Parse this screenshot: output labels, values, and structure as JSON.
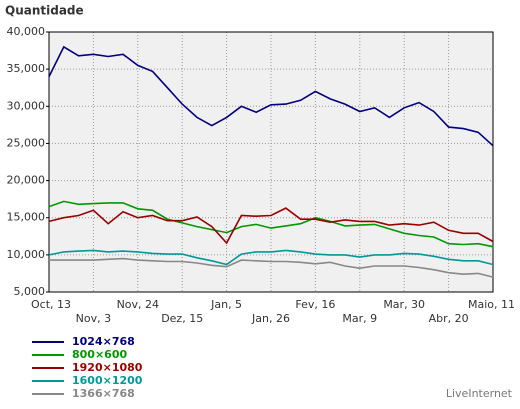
{
  "chart_data": {
    "type": "line",
    "title": "Quantidade",
    "source": "LiveInternet",
    "categories": [
      "Oct, 13",
      null,
      null,
      "Nov, 3",
      null,
      null,
      "Nov, 24",
      null,
      null,
      "Dez, 15",
      null,
      null,
      "Jan, 5",
      null,
      null,
      "Jan, 26",
      null,
      null,
      "Fev, 16",
      null,
      null,
      "Mar, 9",
      null,
      null,
      "Mar, 30",
      null,
      null,
      "Abr, 20",
      null,
      null,
      "Maio, 11"
    ],
    "series": [
      {
        "name": "1024×768",
        "color": "#000080",
        "values": [
          34000,
          38000,
          36800,
          37000,
          36700,
          37000,
          35500,
          34700,
          32500,
          30300,
          28500,
          27400,
          28500,
          30000,
          29200,
          30200,
          30300,
          30800,
          32000,
          31000,
          30300,
          29300,
          29800,
          28500,
          29800,
          30500,
          29300,
          27200,
          27000,
          26500,
          24700
        ]
      },
      {
        "name": "800×600",
        "color": "#009900",
        "values": [
          16500,
          17200,
          16800,
          16900,
          17000,
          17000,
          16200,
          16000,
          14800,
          14300,
          13800,
          13400,
          13000,
          13800,
          14100,
          13600,
          13900,
          14200,
          15000,
          14500,
          13900,
          14000,
          14100,
          13500,
          12900,
          12600,
          12400,
          11500,
          11400,
          11500,
          11100
        ]
      },
      {
        "name": "1920×1080",
        "color": "#990000",
        "values": [
          14500,
          15000,
          15300,
          16000,
          14200,
          15800,
          15000,
          15300,
          14600,
          14600,
          15100,
          13800,
          11600,
          15300,
          15200,
          15300,
          16300,
          14800,
          14800,
          14400,
          14700,
          14500,
          14500,
          14000,
          14200,
          14000,
          14400,
          13300,
          12900,
          12900,
          11800
        ]
      },
      {
        "name": "1600×1200",
        "color": "#009999",
        "values": [
          10000,
          10400,
          10500,
          10600,
          10400,
          10500,
          10400,
          10200,
          10100,
          10100,
          9600,
          9200,
          8700,
          10100,
          10400,
          10400,
          10600,
          10400,
          10100,
          10000,
          10000,
          9700,
          10000,
          10000,
          10200,
          10100,
          9800,
          9400,
          9200,
          9200,
          8700
        ]
      },
      {
        "name": "1366×768",
        "color": "#888888",
        "values": [
          9300,
          9300,
          9300,
          9300,
          9400,
          9500,
          9300,
          9200,
          9100,
          9100,
          8900,
          8600,
          8400,
          9300,
          9200,
          9100,
          9100,
          9000,
          8800,
          9000,
          8500,
          8200,
          8500,
          8500,
          8500,
          8300,
          8000,
          7600,
          7400,
          7500,
          7000
        ]
      }
    ],
    "ylim": [
      5000,
      40000
    ],
    "yticks": [
      {
        "value": 5000,
        "label": "5,000"
      },
      {
        "value": 10000,
        "label": "10,000"
      },
      {
        "value": 15000,
        "label": "15,000"
      },
      {
        "value": 20000,
        "label": "20,000"
      },
      {
        "value": 25000,
        "label": "25,000"
      },
      {
        "value": 30000,
        "label": "30,000"
      },
      {
        "value": 35000,
        "label": "35,000"
      },
      {
        "value": 40000,
        "label": "40,000"
      }
    ],
    "grid": true
  }
}
